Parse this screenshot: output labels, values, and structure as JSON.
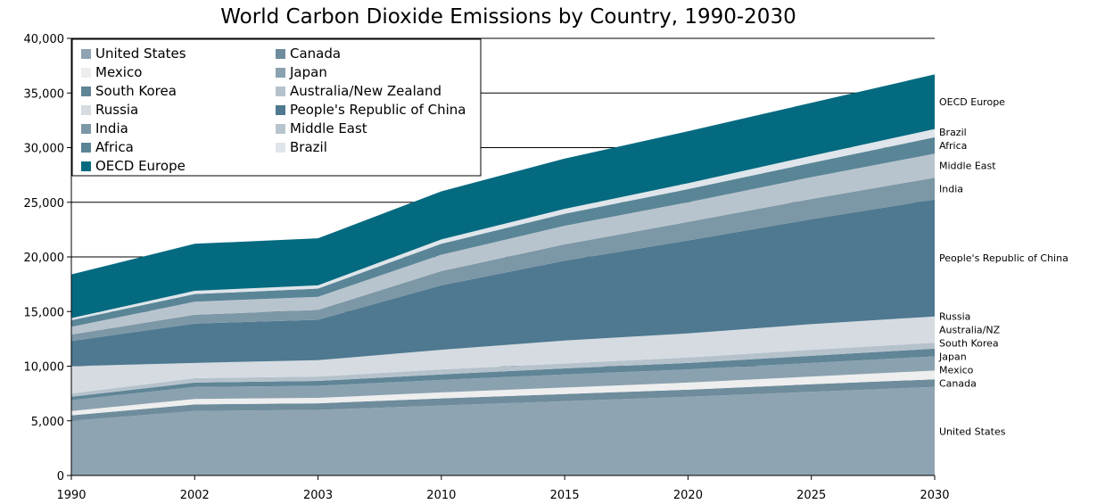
{
  "chart_data": {
    "type": "area",
    "stacked": true,
    "title": "World Carbon Dioxide Emissions by Country, 1990-2030",
    "xlabel": "",
    "ylabel": "",
    "categories": [
      "1990",
      "2002",
      "2003",
      "2010",
      "2015",
      "2020",
      "2025",
      "2030"
    ],
    "ylim": [
      0,
      40000
    ],
    "yticks": [
      "0",
      "5,000",
      "10,000",
      "15,000",
      "20,000",
      "25,000",
      "30,000",
      "35,000",
      "40,000"
    ],
    "ytick_values": [
      0,
      5000,
      10000,
      15000,
      20000,
      25000,
      30000,
      35000,
      40000
    ],
    "grid": "horizontal",
    "legend_position": "top-left",
    "series": [
      {
        "name": "United States",
        "end_label": "United States",
        "color": "#8fa4b3",
        "values": [
          5000,
          5900,
          6000,
          6400,
          6800,
          7200,
          7650,
          8100
        ]
      },
      {
        "name": "Canada",
        "end_label": "Canada",
        "color": "#6e8c9c",
        "values": [
          500,
          600,
          600,
          650,
          650,
          650,
          700,
          700
        ]
      },
      {
        "name": "Mexico",
        "end_label": "Mexico",
        "color": "#eeeeee",
        "values": [
          400,
          500,
          500,
          550,
          600,
          650,
          700,
          800
        ]
      },
      {
        "name": "Japan",
        "end_label": "Japan",
        "color": "#8aa1b0",
        "values": [
          1000,
          1100,
          1100,
          1150,
          1200,
          1200,
          1250,
          1300
        ]
      },
      {
        "name": "South Korea",
        "end_label": "South Korea",
        "color": "#5f8596",
        "values": [
          300,
          400,
          450,
          500,
          550,
          600,
          650,
          700
        ]
      },
      {
        "name": "Australia/New Zealand",
        "end_label": "Australia/NZ",
        "color": "#b5c2cc",
        "values": [
          300,
          400,
          400,
          450,
          450,
          500,
          550,
          550
        ]
      },
      {
        "name": "Russia",
        "end_label": "Russia",
        "color": "#d5dbe1",
        "values": [
          2500,
          1400,
          1500,
          1800,
          2100,
          2200,
          2350,
          2400
        ]
      },
      {
        "name": "People's Republic of China",
        "end_label": "People's Republic of China",
        "color": "#4e7990",
        "values": [
          2300,
          3600,
          3700,
          5900,
          7300,
          8500,
          9600,
          10700
        ]
      },
      {
        "name": "India",
        "end_label": "India",
        "color": "#7c97a6",
        "values": [
          600,
          800,
          900,
          1300,
          1500,
          1700,
          1850,
          2000
        ]
      },
      {
        "name": "Middle East",
        "end_label": "Middle East",
        "color": "#b8c4cd",
        "values": [
          700,
          1200,
          1200,
          1500,
          1700,
          1800,
          2000,
          2200
        ]
      },
      {
        "name": "Africa",
        "end_label": "Africa",
        "color": "#5a8597",
        "values": [
          600,
          700,
          750,
          1000,
          1100,
          1200,
          1300,
          1500
        ]
      },
      {
        "name": "Brazil",
        "end_label": "Brazil",
        "color": "#dfe5ea",
        "values": [
          200,
          300,
          300,
          400,
          450,
          550,
          650,
          750
        ]
      },
      {
        "name": "OECD Europe",
        "end_label": "OECD Europe",
        "color": "#046a80",
        "values": [
          4000,
          4300,
          4300,
          4400,
          4600,
          4750,
          4850,
          5000
        ]
      }
    ]
  }
}
